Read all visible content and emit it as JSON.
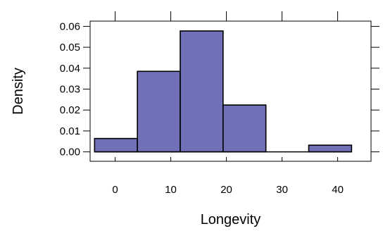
{
  "chart_data": {
    "type": "bar",
    "title": "",
    "xlabel": "Longevity",
    "ylabel": "Density",
    "xlim": [
      -4.5,
      46
    ],
    "ylim": [
      -0.0045,
      0.0625
    ],
    "grid": false,
    "legend": "none",
    "bar_color": "#7070b8",
    "bar_edge_color": "#000000",
    "bins": [
      {
        "x0": -3.7,
        "x1": 4.0,
        "density": 0.0064
      },
      {
        "x0": 4.0,
        "x1": 11.7,
        "density": 0.0385
      },
      {
        "x0": 11.7,
        "x1": 19.4,
        "density": 0.0578
      },
      {
        "x0": 19.4,
        "x1": 27.1,
        "density": 0.0224
      },
      {
        "x0": 27.1,
        "x1": 34.8,
        "density": 0.0
      },
      {
        "x0": 34.8,
        "x1": 42.5,
        "density": 0.0032
      }
    ],
    "x_ticks": [
      {
        "value": 0,
        "label": "0"
      },
      {
        "value": 10,
        "label": "10"
      },
      {
        "value": 20,
        "label": "20"
      },
      {
        "value": 30,
        "label": "30"
      },
      {
        "value": 40,
        "label": "40"
      }
    ],
    "y_ticks": [
      {
        "value": 0.0,
        "label": "0.00"
      },
      {
        "value": 0.01,
        "label": "0.01"
      },
      {
        "value": 0.02,
        "label": "0.02"
      },
      {
        "value": 0.03,
        "label": "0.03"
      },
      {
        "value": 0.04,
        "label": "0.04"
      },
      {
        "value": 0.05,
        "label": "0.05"
      },
      {
        "value": 0.06,
        "label": "0.06"
      }
    ]
  }
}
